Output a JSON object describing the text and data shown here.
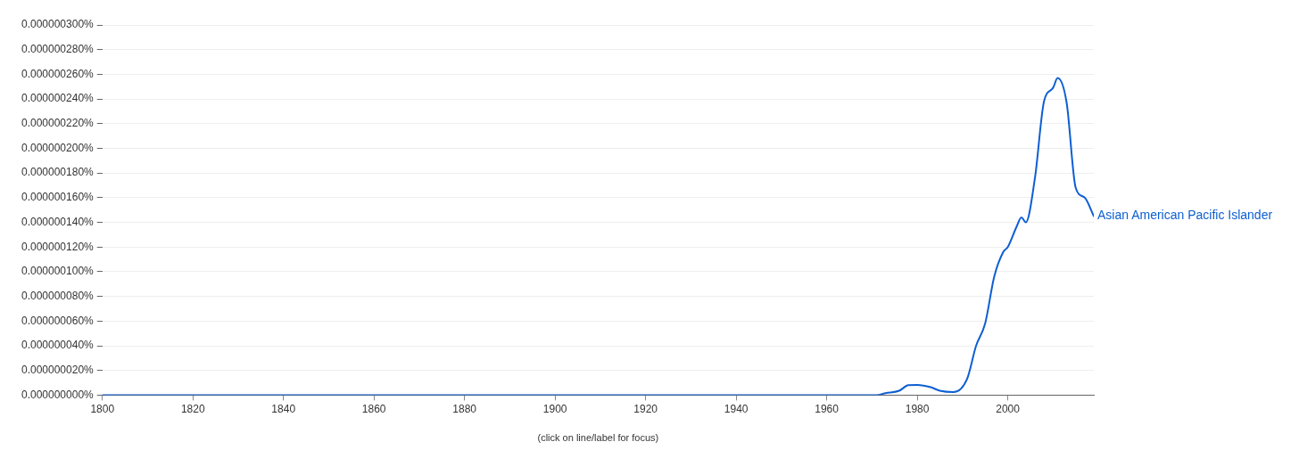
{
  "chart_data": {
    "type": "line",
    "xlabel": "(click on line/label for focus)",
    "xlim": [
      1800,
      2019
    ],
    "xticks": [
      1800,
      1820,
      1840,
      1860,
      1880,
      1900,
      1920,
      1940,
      1960,
      1980,
      2000
    ],
    "ylim": [
      0,
      3e-07
    ],
    "yticks": [
      {
        "value": 0,
        "label": "0.000000000%"
      },
      {
        "value": 2e-08,
        "label": "0.000000020%"
      },
      {
        "value": 4e-08,
        "label": "0.000000040%"
      },
      {
        "value": 6e-08,
        "label": "0.000000060%"
      },
      {
        "value": 8e-08,
        "label": "0.000000080%"
      },
      {
        "value": 1e-07,
        "label": "0.000000100%"
      },
      {
        "value": 1.2e-07,
        "label": "0.000000120%"
      },
      {
        "value": 1.4e-07,
        "label": "0.000000140%"
      },
      {
        "value": 1.6e-07,
        "label": "0.000000160%"
      },
      {
        "value": 1.8e-07,
        "label": "0.000000180%"
      },
      {
        "value": 2e-07,
        "label": "0.000000200%"
      },
      {
        "value": 2.2e-07,
        "label": "0.000000220%"
      },
      {
        "value": 2.4e-07,
        "label": "0.000000240%"
      },
      {
        "value": 2.6e-07,
        "label": "0.000000260%"
      },
      {
        "value": 2.8e-07,
        "label": "0.000000280%"
      },
      {
        "value": 3e-07,
        "label": "0.000000300%"
      }
    ],
    "grid": "y",
    "legend": false,
    "marker": "none",
    "line_style": "solid",
    "x": [
      1800,
      1900,
      1966,
      1971,
      1973,
      1976,
      1978,
      1980,
      1983,
      1985,
      1988,
      1991,
      1993,
      1995,
      1997,
      1999,
      2000,
      2002,
      2003,
      2004,
      2006,
      2008,
      2010,
      2011,
      2013,
      2015,
      2017,
      2019
    ],
    "series": [
      {
        "name": "Asian American Pacific Islander",
        "color": "#0d5fd3",
        "values": [
          0,
          0,
          0,
          0,
          1.6e-09,
          3.5e-09,
          8e-09,
          8.3e-09,
          6.4e-09,
          3.5e-09,
          2.4e-09,
          1.3e-08,
          4e-08,
          5.8e-08,
          9.6e-08,
          1.16e-07,
          1.2e-07,
          1.37e-07,
          1.44e-07,
          1.4e-07,
          1.76e-07,
          2.38e-07,
          2.49e-07,
          2.57e-07,
          2.37e-07,
          1.68e-07,
          1.6e-07,
          1.45e-07
        ]
      }
    ]
  }
}
